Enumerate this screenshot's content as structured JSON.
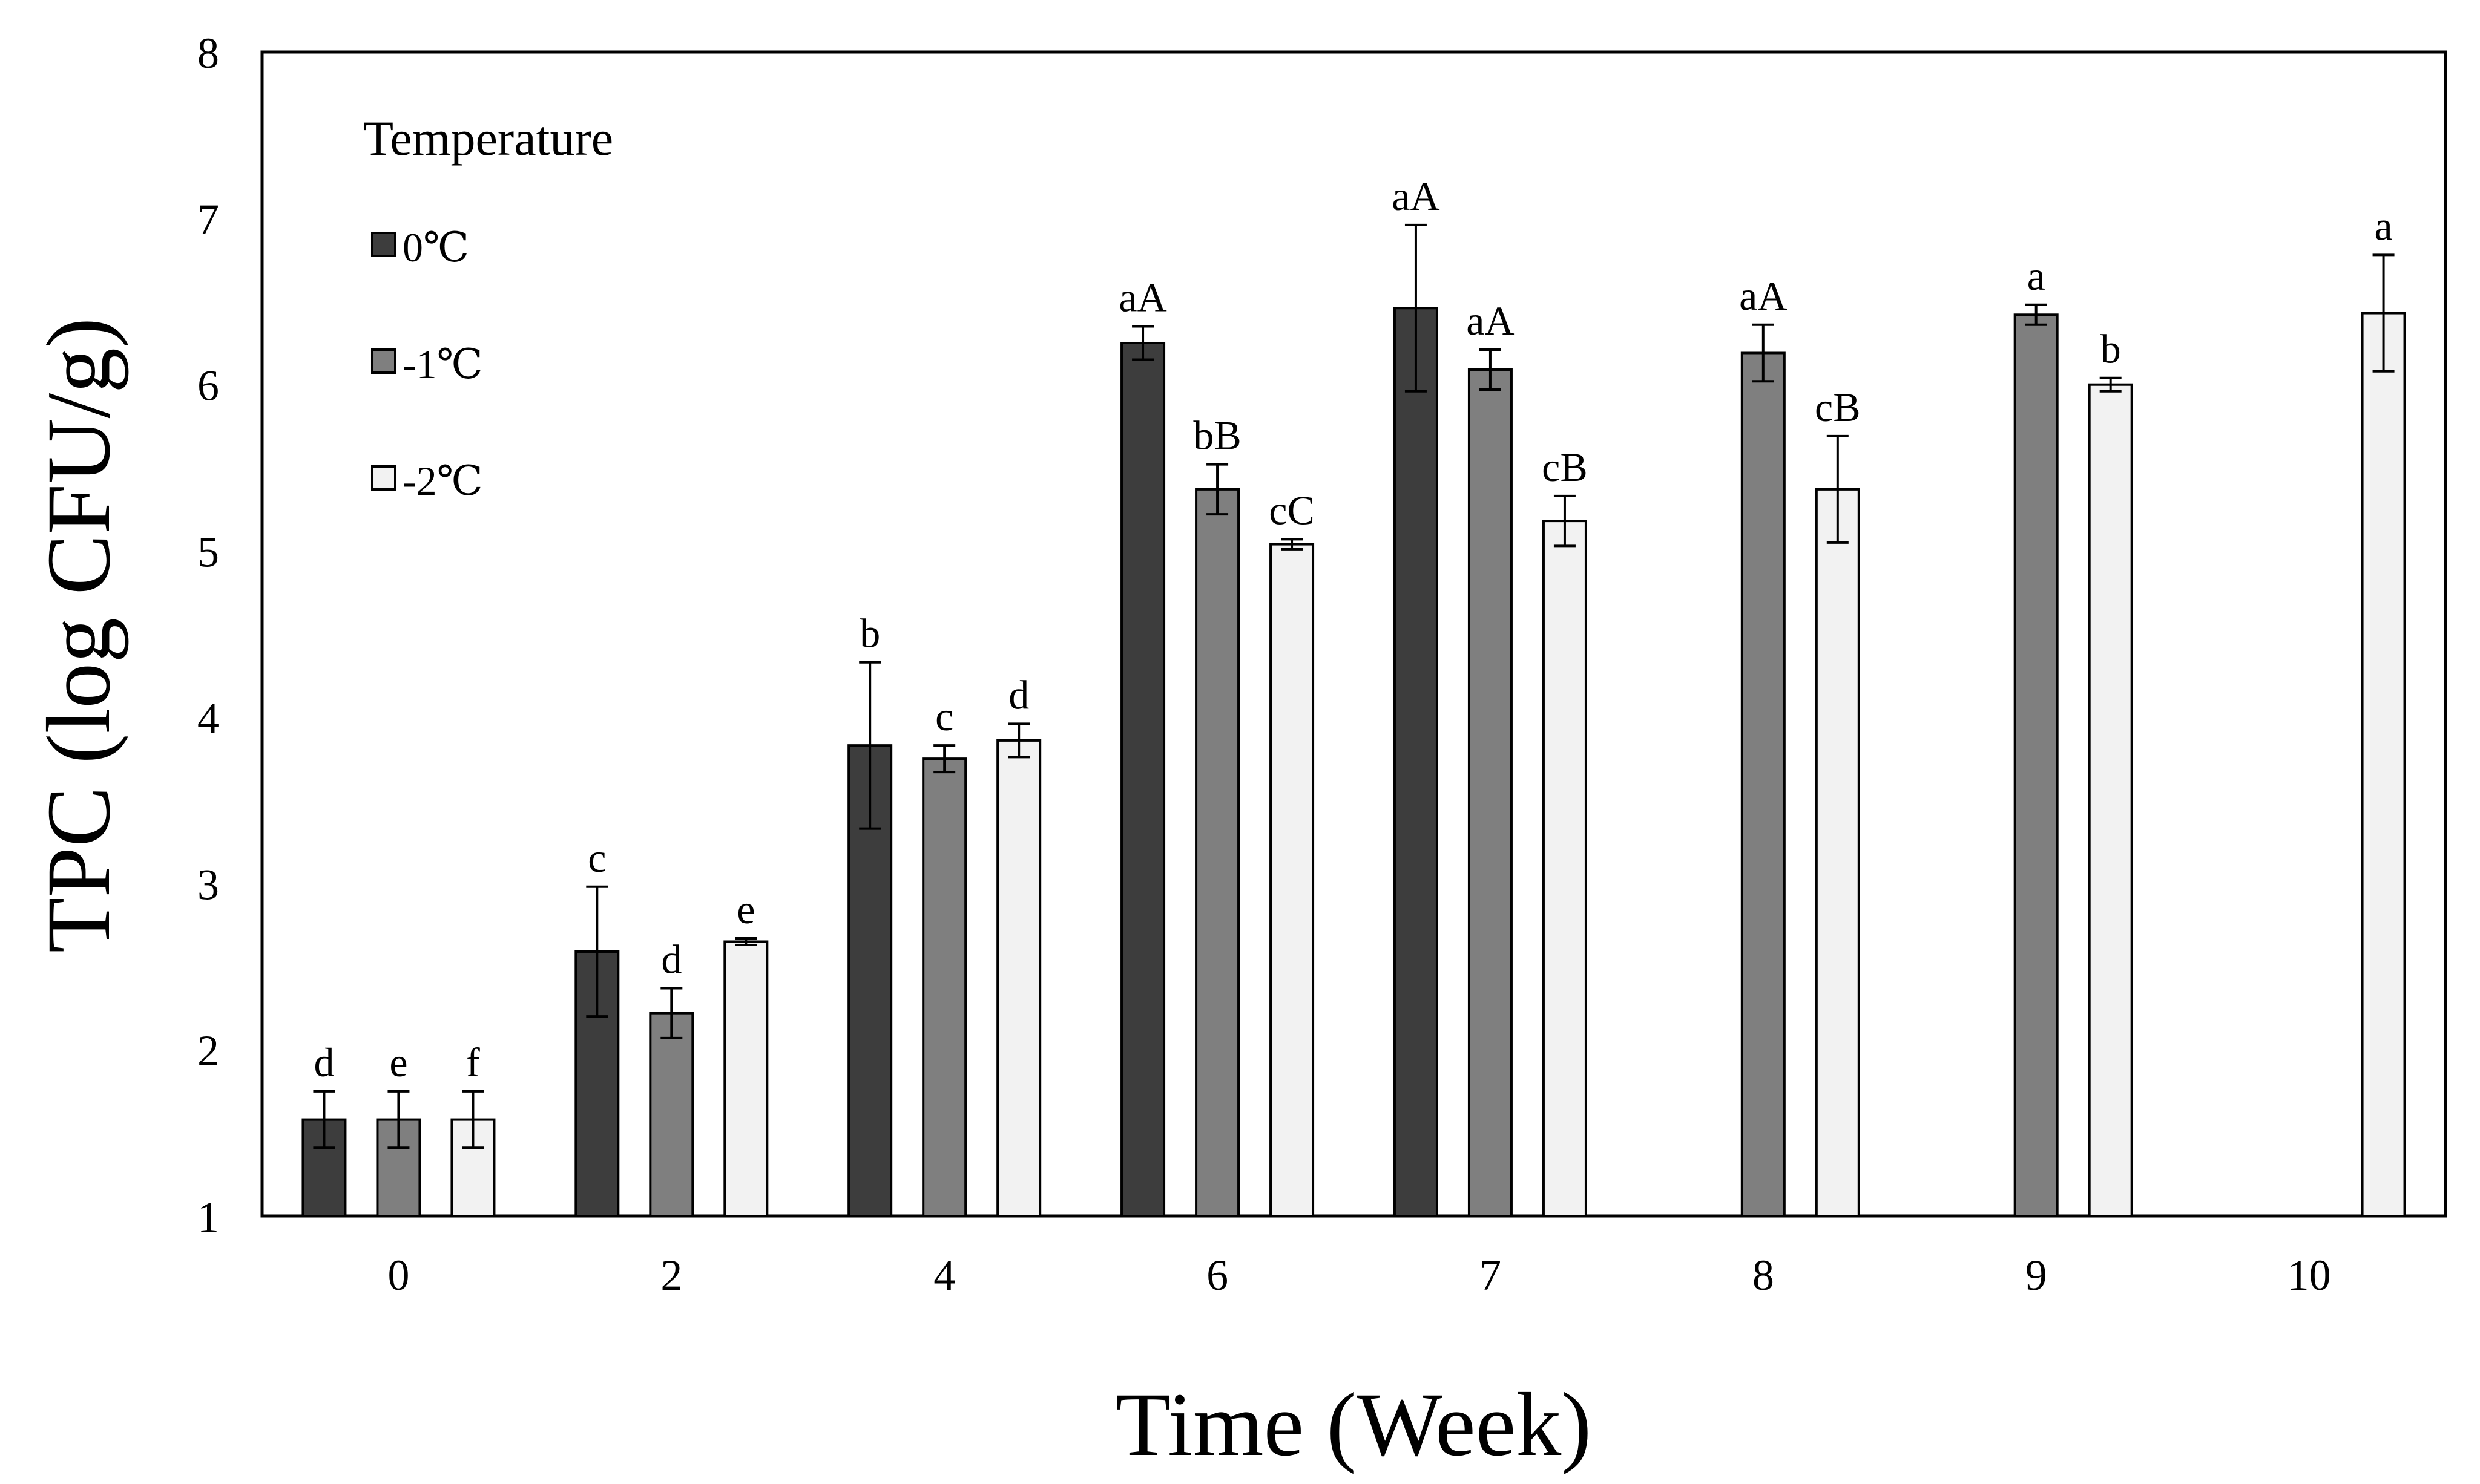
{
  "chart_data": {
    "type": "bar",
    "title": "",
    "xlabel": "Time (Week)",
    "ylabel": "TPC (log CFU/g)",
    "ylim": [
      1,
      8
    ],
    "yticks": [
      "1",
      "2",
      "3",
      "4",
      "5",
      "6",
      "7",
      "8"
    ],
    "categories": [
      "0",
      "2",
      "4",
      "6",
      "7",
      "8",
      "9",
      "10"
    ],
    "legend": {
      "title": "Temperature",
      "position": "top-left"
    },
    "series": [
      {
        "name": "0℃",
        "color": "#3d3d3d",
        "values": [
          1.58,
          2.59,
          3.83,
          6.25,
          6.46,
          null,
          null,
          null
        ],
        "errors": [
          0.17,
          0.39,
          0.5,
          0.1,
          0.5,
          null,
          null,
          null
        ],
        "labels": [
          "d",
          "c",
          "b",
          "aA",
          "aA",
          "",
          "",
          ""
        ]
      },
      {
        "name": "-1℃",
        "color": "#7f7f7f",
        "values": [
          1.58,
          2.22,
          3.75,
          5.37,
          6.09,
          6.19,
          6.42,
          null
        ],
        "errors": [
          0.17,
          0.15,
          0.08,
          0.15,
          0.12,
          0.17,
          0.06,
          null
        ],
        "labels": [
          "e",
          "d",
          "c",
          "bB",
          "aA",
          "aA",
          "a",
          ""
        ]
      },
      {
        "name": "-2℃",
        "color": "#f2f2f2",
        "values": [
          1.58,
          2.65,
          3.86,
          5.04,
          5.18,
          5.37,
          6.0,
          6.43
        ],
        "errors": [
          0.17,
          0.02,
          0.1,
          0.03,
          0.15,
          0.32,
          0.04,
          0.35
        ],
        "labels": [
          "f",
          "e",
          "d",
          "cC",
          "cB",
          "cB",
          "b",
          "a"
        ]
      }
    ]
  }
}
